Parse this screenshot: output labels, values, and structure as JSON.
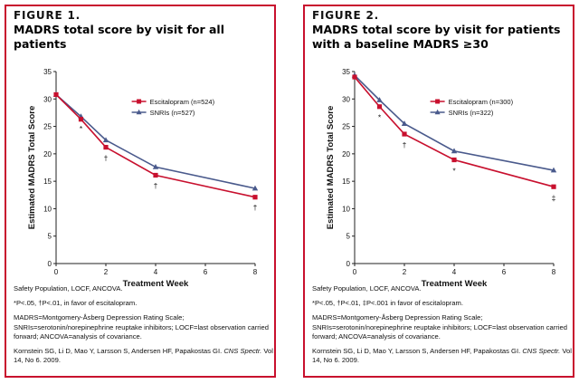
{
  "colors": {
    "escitalopram": "#c8102e",
    "snri": "#4a5a8c",
    "border": "#c8102e"
  },
  "figures": [
    {
      "label": "FIGURE 1.",
      "title": "MADRS total score by visit for all patients",
      "notes": {
        "population": "Safety Population, LOCF, ANCOVA.",
        "significance": "*P<.05, †P<.01, in favor of escitalopram.",
        "abbreviations": "MADRS=Montgomery-Åsberg Depression Rating Scale; SNRIs=serotonin/norepinephrine reuptake inhibitors; LOCF=last observation carried forward; ANCOVA=analysis of covariance.",
        "citation_authors": "Kornstein SG, Li D, Mao Y, Larsson S, Andersen HF, Papakostas GI.",
        "citation_journal": "CNS Spectr.",
        "citation_rest": "Vol 14, No 6. 2009."
      }
    },
    {
      "label": "FIGURE 2.",
      "title": "MADRS total score by visit for patients with a baseline MADRS ≥30",
      "notes": {
        "population": "Safety Population, LOCF, ANCOVA.",
        "significance": "*P<.05, †P<.01, ‡P<.001 in favor of escitalopram.",
        "abbreviations": "MADRS=Montgomery-Åsberg Depression Rating Scale; SNRIs=serotonin/norepinephrine reuptake inhibitors; LOCF=last observation carried forward; ANCOVA=analysis of covariance.",
        "citation_authors": "Kornstein SG, Li D, Mao Y, Larsson S, Andersen HF, Papakostas GI.",
        "citation_journal": "CNS Spectr.",
        "citation_rest": "Vol 14, No 6. 2009."
      }
    }
  ],
  "chart_data": [
    {
      "type": "line",
      "xlabel": "Treatment Week",
      "ylabel": "Estimated MADRS Total Score",
      "xlim": [
        0,
        8
      ],
      "ylim": [
        0,
        35
      ],
      "xticks": [
        0,
        2,
        4,
        6,
        8
      ],
      "yticks": [
        0,
        5,
        10,
        15,
        20,
        25,
        30,
        35
      ],
      "grid": false,
      "legend_position": "top-right",
      "series": [
        {
          "name": "Escitalopram (n=524)",
          "color": "#c8102e",
          "marker": "square",
          "x": [
            0,
            1,
            2,
            4,
            8
          ],
          "y": [
            30.8,
            26.3,
            21.2,
            16.1,
            12.1
          ]
        },
        {
          "name": "SNRIs (n=527)",
          "color": "#4a5a8c",
          "marker": "triangle",
          "x": [
            0,
            1,
            2,
            4,
            8
          ],
          "y": [
            30.8,
            26.8,
            22.5,
            17.6,
            13.7
          ]
        }
      ],
      "annotations": [
        {
          "x": 1,
          "y": 24.6,
          "text": "*"
        },
        {
          "x": 2,
          "y": 19.2,
          "text": "†"
        },
        {
          "x": 4,
          "y": 14.2,
          "text": "†"
        },
        {
          "x": 8,
          "y": 10.2,
          "text": "†"
        }
      ]
    },
    {
      "type": "line",
      "xlabel": "Treatment Week",
      "ylabel": "Estimated MADRS Total Score",
      "xlim": [
        0,
        8
      ],
      "ylim": [
        0,
        35
      ],
      "xticks": [
        0,
        2,
        4,
        6,
        8
      ],
      "yticks": [
        0,
        5,
        10,
        15,
        20,
        25,
        30,
        35
      ],
      "grid": false,
      "legend_position": "top-right",
      "series": [
        {
          "name": "Escitalopram (n=300)",
          "color": "#c8102e",
          "marker": "square",
          "x": [
            0,
            1,
            2,
            4,
            8
          ],
          "y": [
            34.0,
            28.6,
            23.6,
            18.9,
            14.0
          ]
        },
        {
          "name": "SNRIs (n=322)",
          "color": "#4a5a8c",
          "marker": "triangle",
          "x": [
            0,
            1,
            2,
            4,
            8
          ],
          "y": [
            34.3,
            29.8,
            25.5,
            20.5,
            17.0
          ]
        }
      ],
      "annotations": [
        {
          "x": 1,
          "y": 26.7,
          "text": "*"
        },
        {
          "x": 2,
          "y": 21.6,
          "text": "†"
        },
        {
          "x": 4,
          "y": 16.9,
          "text": "*"
        },
        {
          "x": 8,
          "y": 12.0,
          "text": "‡"
        }
      ]
    }
  ]
}
